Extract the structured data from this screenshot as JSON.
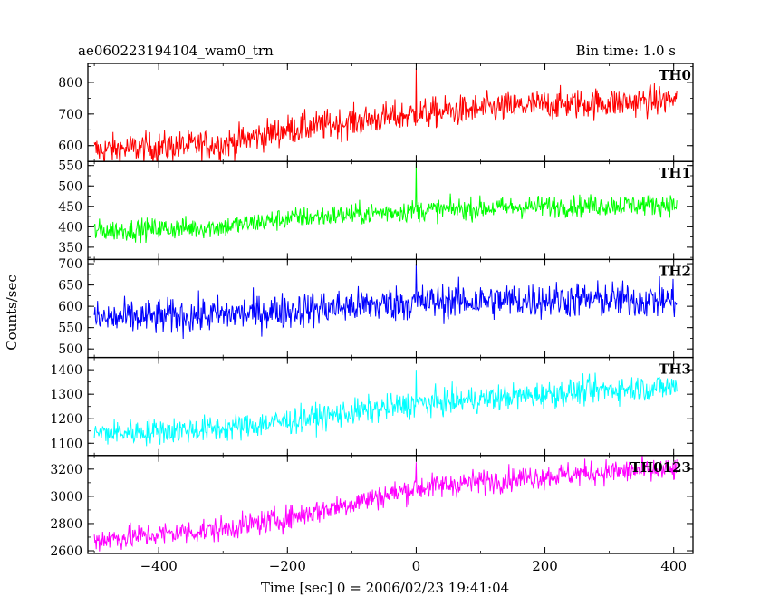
{
  "chart_data": {
    "type": "line",
    "title": "ae060223194104_wam0_trn",
    "subtitle": "Bin time: 1.0 s",
    "xlabel": "Time [sec] 0 = 2006/02/23 19:41:04",
    "ylabel": "Counts/sec",
    "xlim": [
      -510,
      430
    ],
    "x_ticks": [
      -400,
      -200,
      0,
      200,
      400
    ],
    "x_tick_labels": [
      "−400",
      "−200",
      "0",
      "200",
      "400"
    ],
    "grid": false,
    "panels": [
      {
        "name": "TH0",
        "color": "#ff0000",
        "ylim": [
          550,
          860
        ],
        "y_ticks": [
          600,
          700,
          800
        ],
        "y_tick_labels": [
          "600",
          "700",
          "800"
        ],
        "anchors_x": [
          -500,
          -300,
          -200,
          -100,
          0,
          100,
          200,
          300,
          405
        ],
        "anchors_y": [
          585,
          605,
          650,
          675,
          700,
          715,
          730,
          735,
          745
        ],
        "noise": 40,
        "spike_x": 0,
        "spike_y": 845
      },
      {
        "name": "TH1",
        "color": "#00ff00",
        "ylim": [
          320,
          560
        ],
        "y_ticks": [
          350,
          400,
          450,
          500,
          550
        ],
        "y_tick_labels": [
          "350",
          "400",
          "450",
          "500",
          "550"
        ],
        "anchors_x": [
          -500,
          -300,
          -200,
          -100,
          0,
          200,
          405
        ],
        "anchors_y": [
          390,
          400,
          420,
          430,
          440,
          450,
          455
        ],
        "noise": 22,
        "spike_x": 0,
        "spike_y": 555
      },
      {
        "name": "TH2",
        "color": "#0000ff",
        "ylim": [
          480,
          710
        ],
        "y_ticks": [
          500,
          550,
          600,
          650,
          700
        ],
        "y_tick_labels": [
          "500",
          "550",
          "600",
          "650",
          "700"
        ],
        "anchors_x": [
          -500,
          -300,
          -100,
          0,
          200,
          405
        ],
        "anchors_y": [
          570,
          580,
          600,
          610,
          615,
          615
        ],
        "noise": 35,
        "spike_x": 0,
        "spike_y": 700
      },
      {
        "name": "TH3",
        "color": "#00ffff",
        "ylim": [
          1050,
          1450
        ],
        "y_ticks": [
          1100,
          1200,
          1300,
          1400
        ],
        "y_tick_labels": [
          "1100",
          "1200",
          "1300",
          "1400"
        ],
        "anchors_x": [
          -500,
          -300,
          -200,
          0,
          100,
          200,
          300,
          405
        ],
        "anchors_y": [
          1140,
          1160,
          1190,
          1260,
          1280,
          1300,
          1320,
          1330
        ],
        "noise": 45,
        "spike_x": 0,
        "spike_y": 1400
      },
      {
        "name": "TH0123",
        "color": "#ff00ff",
        "ylim": [
          2580,
          3300
        ],
        "y_ticks": [
          2600,
          2800,
          3000,
          3200
        ],
        "y_tick_labels": [
          "2600",
          "2800",
          "3000",
          "3200"
        ],
        "anchors_x": [
          -500,
          -300,
          -200,
          -100,
          0,
          100,
          200,
          300,
          405
        ],
        "anchors_y": [
          2680,
          2760,
          2840,
          2950,
          3060,
          3110,
          3150,
          3180,
          3190
        ],
        "noise": 75,
        "spike_x": 0,
        "spike_y": 3250
      }
    ]
  }
}
